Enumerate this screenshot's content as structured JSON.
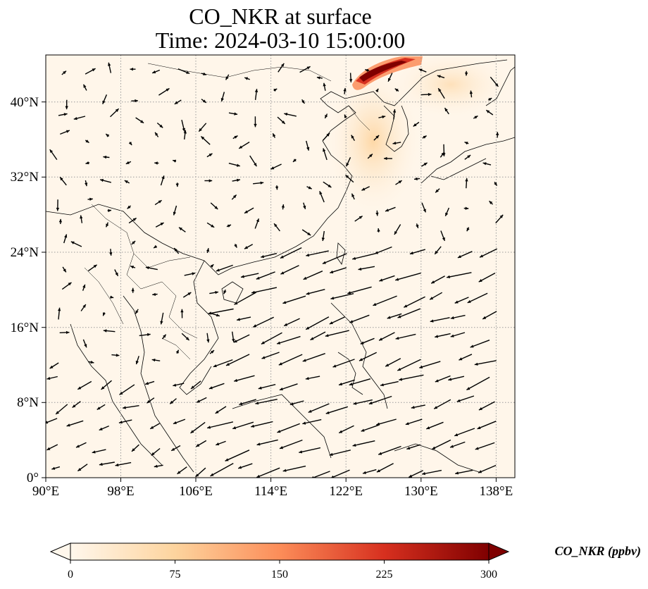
{
  "title": {
    "line1": "CO_NKR at surface",
    "line2": "Time: 2024-03-10 15:00:00"
  },
  "map": {
    "lon_range": [
      90,
      140
    ],
    "lat_range": [
      0,
      45
    ],
    "grid": true,
    "x_ticks": [
      "90°E",
      "98°E",
      "106°E",
      "114°E",
      "122°E",
      "130°E",
      "138°E"
    ],
    "y_ticks": [
      "0°",
      "8°N",
      "16°N",
      "24°N",
      "32°N",
      "40°N"
    ]
  },
  "colorbar": {
    "label": "CO_NKR (ppbv)",
    "ticks": [
      "0",
      "75",
      "150",
      "225",
      "300"
    ],
    "range": [
      0,
      300
    ],
    "colormap": "OrRd",
    "extend": "both",
    "colors": [
      "#fff7ec",
      "#fdd49e",
      "#fc8d59",
      "#d7301f",
      "#7f0000"
    ]
  }
}
